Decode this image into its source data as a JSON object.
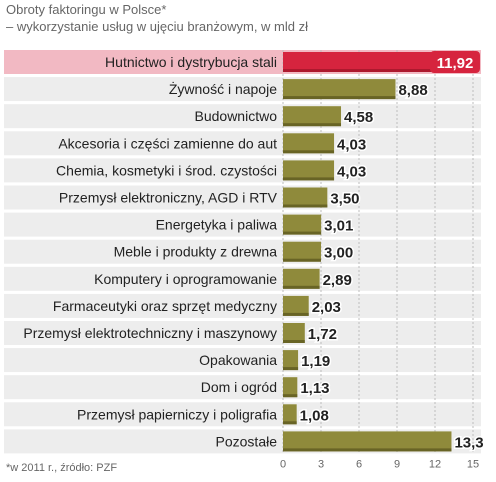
{
  "title": "Obroty faktoringu w Polsce*",
  "subtitle": "– wykorzystanie usług w ujęciu branżowym, w mld zł",
  "footnote": "*w 2011 r., źródło: PZF",
  "colors": {
    "bar": "#8f8a3b",
    "highlight": "#d6243e",
    "highlight_row_bg": "#f2b9c3",
    "row_bg": "#ededed",
    "bar_shadow": "#5e5a20"
  },
  "chart_data": {
    "type": "bar",
    "orientation": "horizontal",
    "title": "Obroty faktoringu w Polsce*",
    "subtitle": "– wykorzystanie usług w ujęciu branżowym, w mld zł",
    "categories": [
      "Hutnictwo i dystrybucja stali",
      "Żywność i napoje",
      "Budownictwo",
      "Akcesoria i części zamienne do aut",
      "Chemia, kosmetyki i środ. czystości",
      "Przemysł elektroniczny, AGD i RTV",
      "Energetyka i paliwa",
      "Meble i produkty z drewna",
      "Komputery i oprogramowanie",
      "Farmaceutyki oraz sprzęt medyczny",
      "Przemysł elektrotechniczny i maszynowy",
      "Opakowania",
      "Dom i ogród",
      "Przemysł papierniczy i poligrafia",
      "Pozostałe"
    ],
    "values": [
      11.92,
      8.88,
      4.58,
      4.03,
      4.03,
      3.5,
      3.01,
      3.0,
      2.89,
      2.03,
      1.72,
      1.19,
      1.13,
      1.08,
      13.3
    ],
    "value_labels": [
      "11,92",
      "8,88",
      "4,58",
      "4,03",
      "4,03",
      "3,50",
      "3,01",
      "3,00",
      "2,89",
      "2,03",
      "1,72",
      "1,19",
      "1,13",
      "1,08",
      "13,3"
    ],
    "highlight_index": 0,
    "xlim": [
      0,
      15
    ],
    "xticks": [
      0,
      3,
      6,
      9,
      12,
      15
    ],
    "grid": true
  }
}
